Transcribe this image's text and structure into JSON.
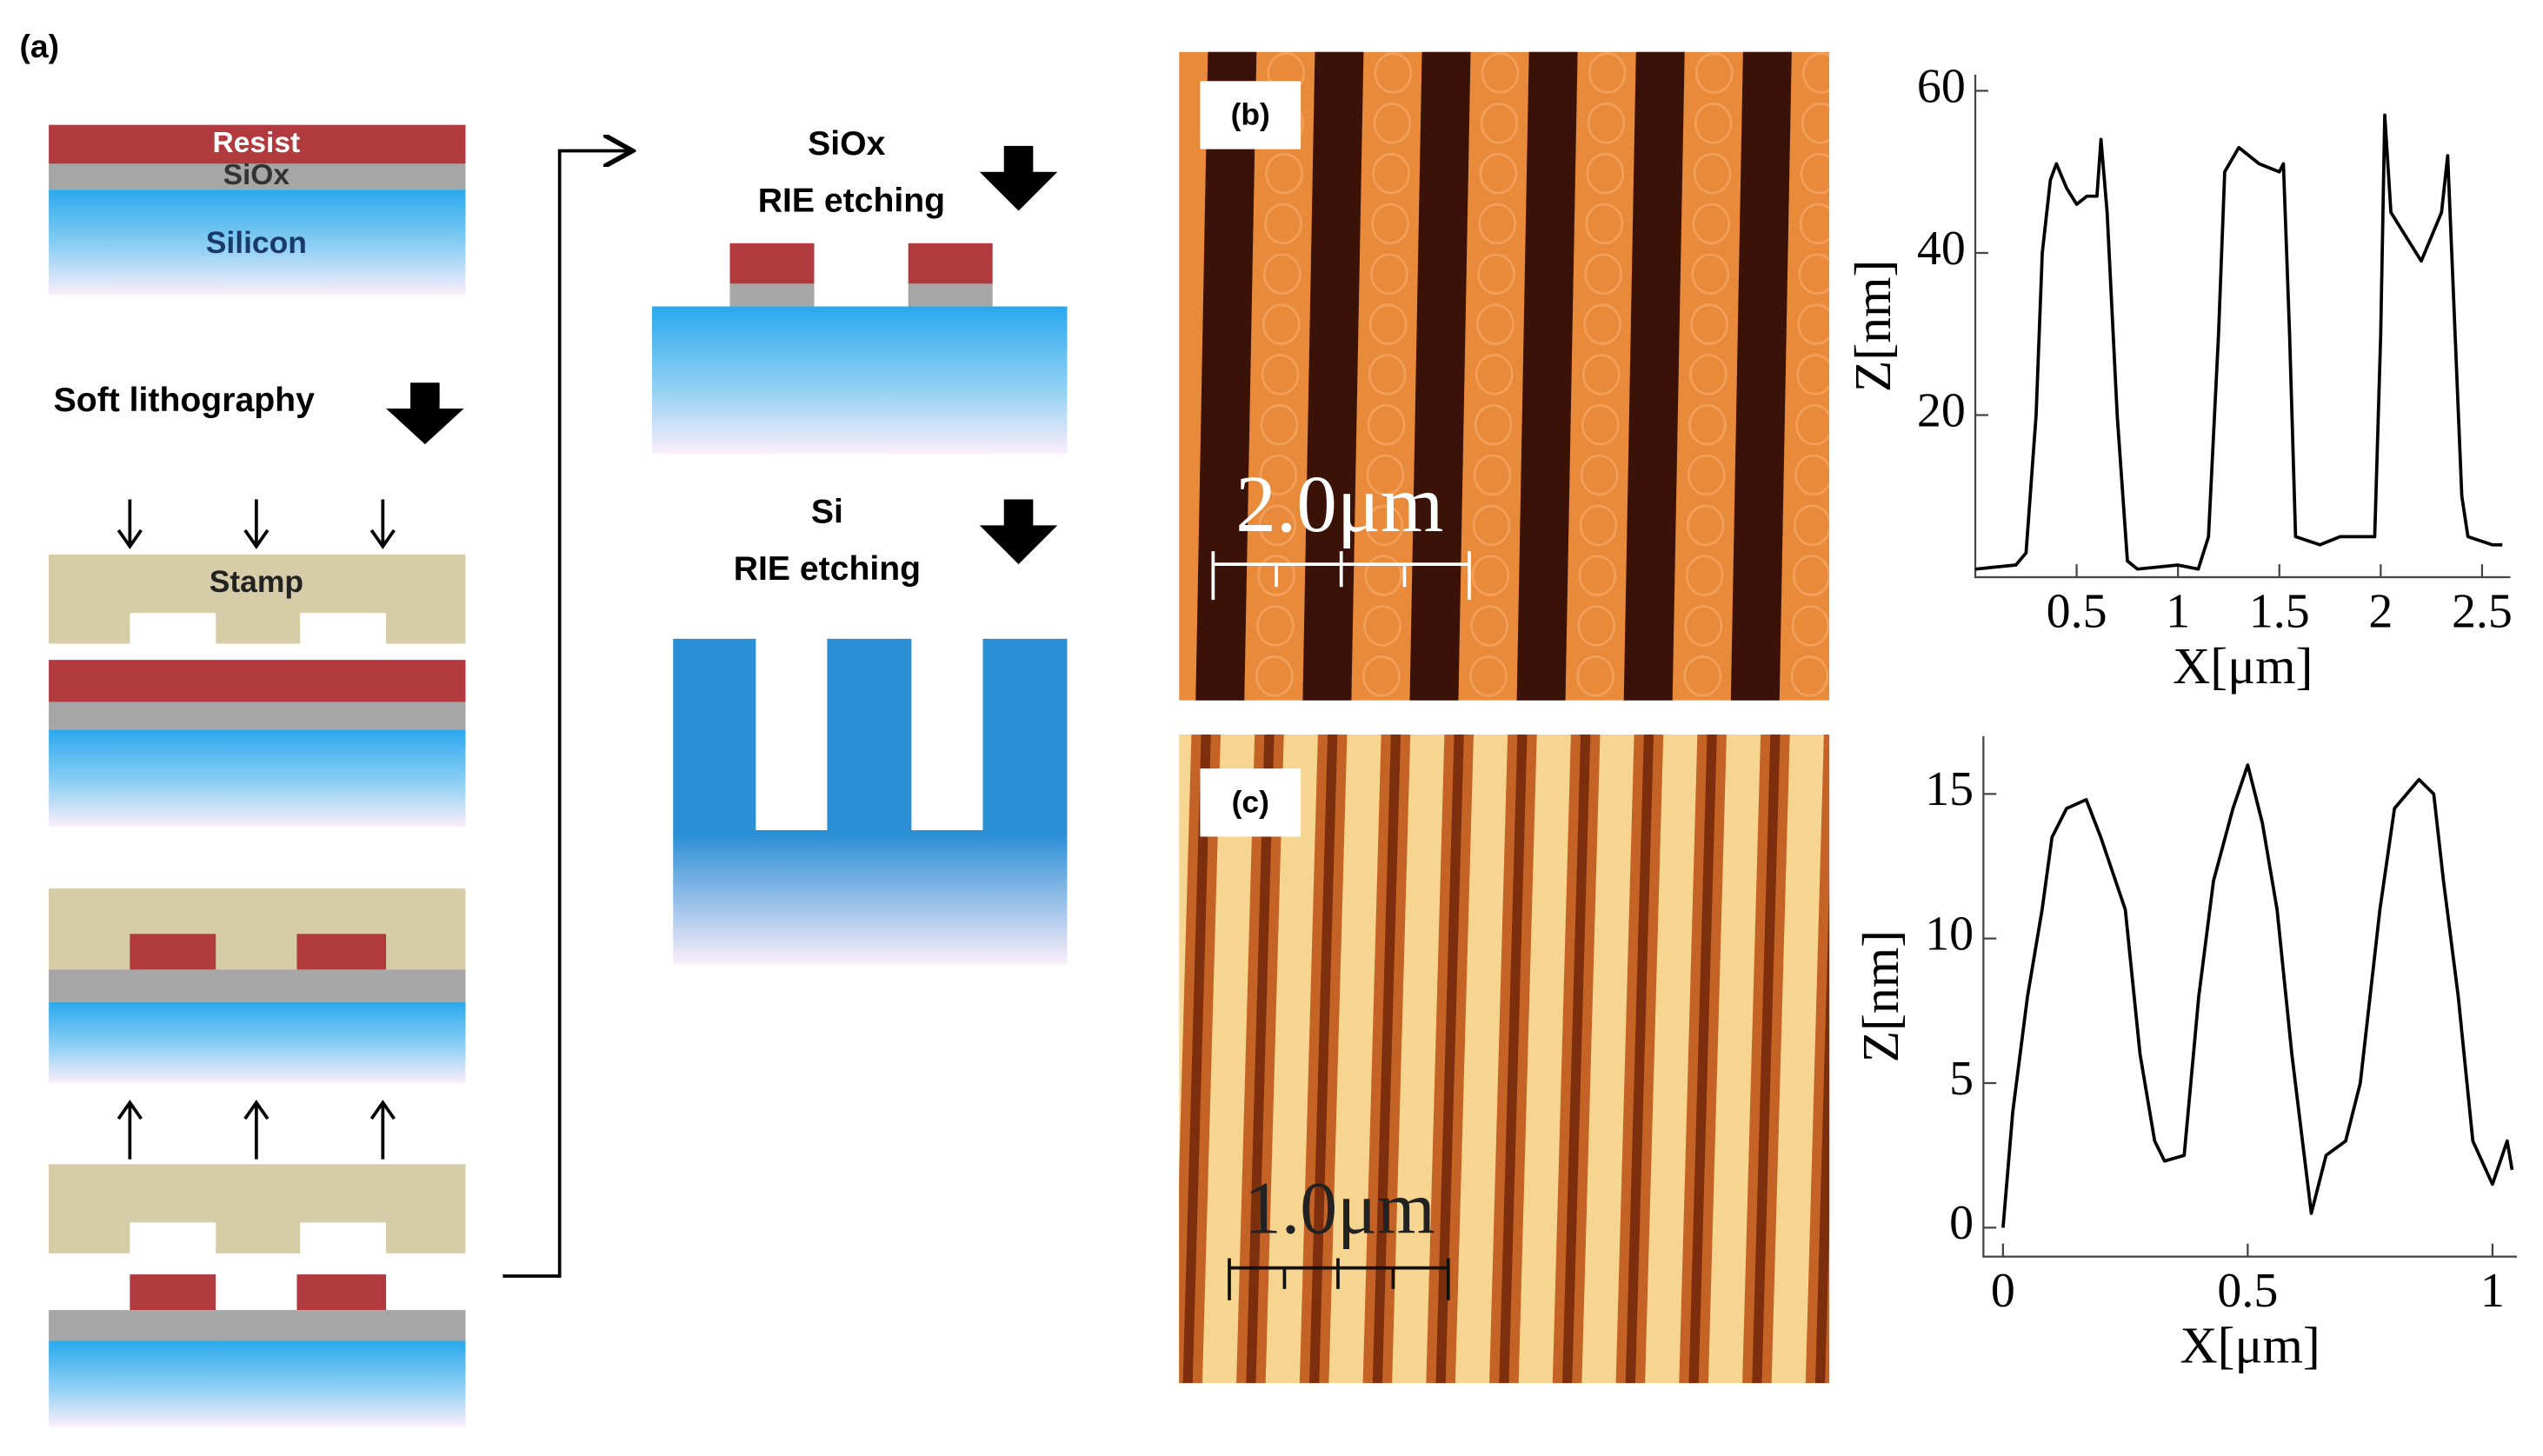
{
  "panel_a": {
    "label": "(a)",
    "resist": "Resist",
    "siox": "SiOx",
    "silicon": "Silicon",
    "step": "Soft lithography",
    "stamp": "Stamp",
    "etch1_top": "SiOx",
    "etch1_bottom": "RIE etching",
    "etch2_top": "Si",
    "etch2_bottom": "RIE etching"
  },
  "panel_b": {
    "label": "(b)",
    "scale_bar": "2.0μm"
  },
  "panel_c": {
    "label": "(c)",
    "scale_bar": "1.0μm"
  },
  "chart_data": [
    {
      "type": "line",
      "x_label": "X[μm]",
      "y_label": "Z[nm]",
      "x": [
        0,
        0.2,
        0.25,
        0.3,
        0.33,
        0.37,
        0.4,
        0.45,
        0.5,
        0.55,
        0.6,
        0.62,
        0.65,
        0.7,
        0.75,
        0.8,
        1.0,
        1.1,
        1.15,
        1.2,
        1.23,
        1.3,
        1.4,
        1.5,
        1.52,
        1.55,
        1.58,
        1.7,
        1.8,
        1.97,
        2.0,
        2.02,
        2.05,
        2.1,
        2.2,
        2.3,
        2.33,
        2.35,
        2.4,
        2.43,
        2.55,
        2.6
      ],
      "values": [
        1,
        1.5,
        3,
        20,
        40,
        49,
        51,
        48,
        46,
        47,
        47,
        54,
        45,
        20,
        2,
        1,
        1.5,
        1,
        5,
        30,
        50,
        53,
        51,
        50,
        51,
        30,
        5,
        4,
        5,
        5,
        30,
        57,
        45,
        43,
        39,
        45,
        52,
        40,
        10,
        5,
        4,
        4
      ],
      "color": "#000000",
      "xlim": [
        0,
        2.64
      ],
      "ylim": [
        0,
        62
      ],
      "xticks": [
        0.5,
        1,
        1.5,
        2,
        2.5
      ],
      "yticks": [
        20,
        40,
        60
      ]
    },
    {
      "type": "line",
      "x_label": "X[μm]",
      "y_label": "Z[nm]",
      "x": [
        0,
        0.02,
        0.05,
        0.08,
        0.1,
        0.13,
        0.17,
        0.2,
        0.25,
        0.28,
        0.31,
        0.33,
        0.37,
        0.4,
        0.43,
        0.47,
        0.5,
        0.53,
        0.56,
        0.59,
        0.63,
        0.66,
        0.7,
        0.73,
        0.77,
        0.8,
        0.85,
        0.88,
        0.9,
        0.93,
        0.96,
        1.0,
        1.03,
        1.04
      ],
      "values": [
        0,
        4,
        8,
        11,
        13.5,
        14.5,
        14.8,
        13.5,
        11,
        6,
        3,
        2.3,
        2.5,
        8,
        12,
        14.5,
        16,
        14,
        11,
        6,
        0.5,
        2.5,
        3,
        5,
        11,
        14.5,
        15.5,
        15,
        12,
        8,
        3,
        1.5,
        3,
        2
      ],
      "color": "#000000",
      "xlim": [
        -0.04,
        1.05
      ],
      "ylim": [
        -1,
        17
      ],
      "xticks": [
        0,
        0.5,
        1
      ],
      "yticks": [
        0,
        5,
        10,
        15
      ]
    }
  ]
}
